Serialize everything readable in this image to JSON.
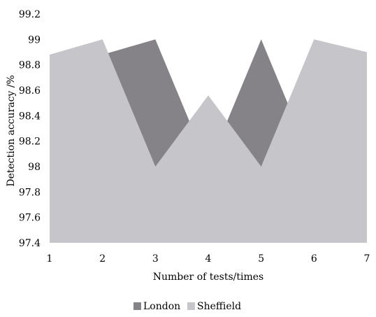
{
  "chart_data": {
    "type": "area",
    "title": "",
    "xlabel": "Number of tests/times",
    "ylabel": "Detection accuracy /%",
    "x": [
      1,
      2,
      3,
      4,
      5,
      6,
      7
    ],
    "x_tick_labels": [
      "1",
      "2",
      "3",
      "4",
      "5",
      "6",
      "7"
    ],
    "ylim": [
      97.4,
      99.2
    ],
    "y_ticks": [
      97.4,
      97.6,
      97.8,
      98,
      98.2,
      98.4,
      98.6,
      98.8,
      99,
      99.2
    ],
    "y_tick_labels": [
      "97.4",
      "97.6",
      "97.8",
      "98",
      "98.2",
      "98.4",
      "98.6",
      "98.8",
      "99",
      "99.2"
    ],
    "grid": false,
    "legend_position": "bottom-center",
    "series": [
      {
        "name": "London",
        "color": "#858387",
        "values": [
          98.88,
          98.88,
          99.0,
          98.0,
          99.0,
          98.0,
          98.0
        ]
      },
      {
        "name": "Sheffield",
        "color": "#c6c5c9",
        "values": [
          98.88,
          99.0,
          98.0,
          98.56,
          98.0,
          99.0,
          98.9
        ]
      }
    ]
  }
}
